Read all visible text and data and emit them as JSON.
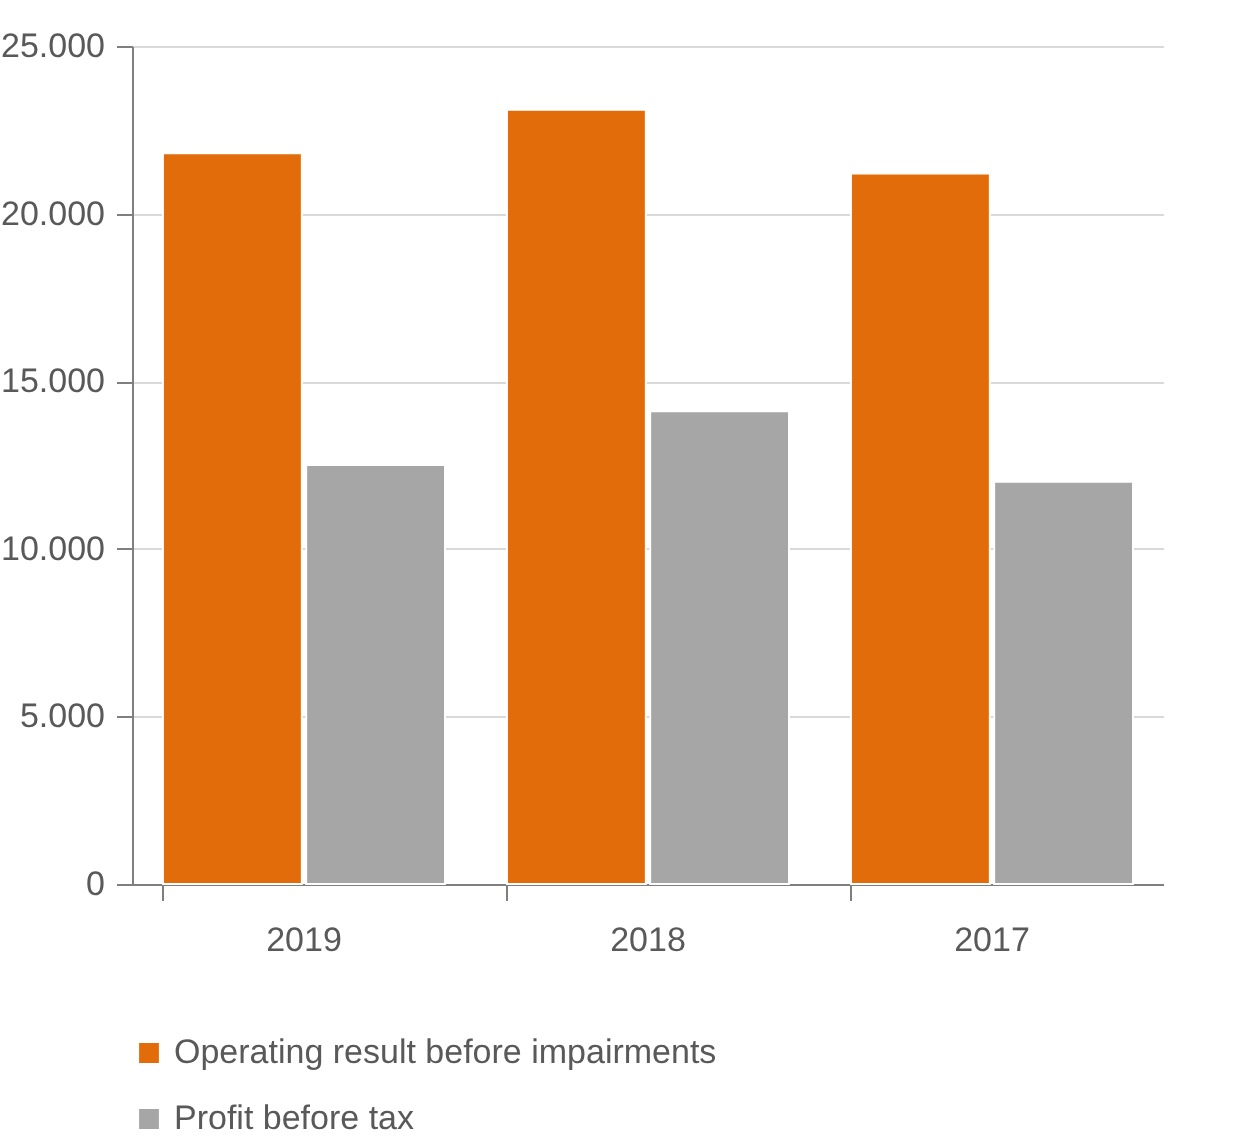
{
  "chart_data": {
    "type": "bar",
    "categories": [
      "2019",
      "2018",
      "2017"
    ],
    "series": [
      {
        "name": "Operating result before impairments",
        "color": "#e36c0a",
        "values": [
          21800,
          23100,
          21200
        ]
      },
      {
        "name": "Profit before tax",
        "color": "#a6a6a6",
        "values": [
          12500,
          14100,
          12000
        ]
      }
    ],
    "ylim": [
      0,
      25000
    ],
    "yticks": [
      {
        "value": 0,
        "label": "0"
      },
      {
        "value": 5000,
        "label": "5.000"
      },
      {
        "value": 10000,
        "label": "10.000"
      },
      {
        "value": 15000,
        "label": "15.000"
      },
      {
        "value": 20000,
        "label": "20.000"
      },
      {
        "value": 25000,
        "label": "25.000"
      }
    ],
    "grid": "y",
    "legend": "bottom"
  }
}
